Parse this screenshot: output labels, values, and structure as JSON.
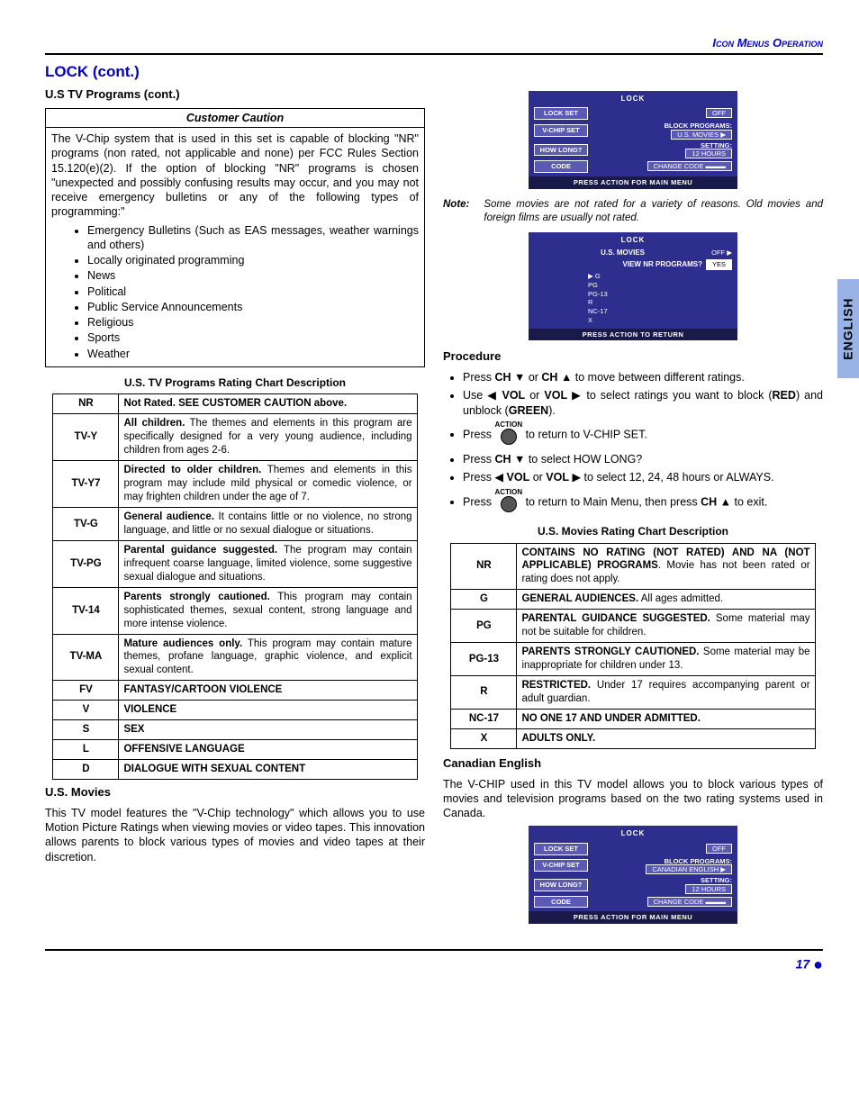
{
  "header": {
    "right": "Icon Menus Operation"
  },
  "title": "LOCK (cont.)",
  "left": {
    "subhead": "U.S TV Programs (cont.)",
    "caution": {
      "title": "Customer Caution",
      "body": "The V-Chip system that is used in this set is capable of blocking \"NR\" programs (non rated, not applicable and none) per FCC Rules Section 15.120(e)(2). If the option of blocking \"NR\" programs is chosen \"unexpected and possibly confusing results may occur, and you may not receive emergency bulletins or any of the following types of programming:\"",
      "items": [
        "Emergency Bulletins (Such as EAS messages, weather warnings and others)",
        "Locally originated programming",
        "News",
        "Political",
        "Public Service Announcements",
        "Religious",
        "Sports",
        "Weather"
      ]
    },
    "tv_table": {
      "caption": "U.S. TV Programs Rating Chart Description",
      "rows": [
        {
          "code": "NR",
          "b": "Not Rated. SEE CUSTOMER CAUTION above.",
          "rest": ""
        },
        {
          "code": "TV-Y",
          "b": "All children.",
          "rest": " The themes and elements in this program are specifically designed for a very young audience, including children from ages 2-6."
        },
        {
          "code": "TV-Y7",
          "b": "Directed to older children.",
          "rest": " Themes and elements in this program may include mild physical or comedic violence, or may frighten children under the age of 7."
        },
        {
          "code": "TV-G",
          "b": "General audience.",
          "rest": " It contains little or no violence, no strong language, and little or no sexual dialogue or situations."
        },
        {
          "code": "TV-PG",
          "b": "Parental guidance suggested.",
          "rest": " The program may contain infrequent coarse language, limited violence, some suggestive sexual dialogue and situations."
        },
        {
          "code": "TV-14",
          "b": "Parents strongly cautioned.",
          "rest": " This program may contain sophisticated themes, sexual content, strong language and more intense violence."
        },
        {
          "code": "TV-MA",
          "b": "Mature audiences only.",
          "rest": " This program may contain mature themes, profane language, graphic violence, and explicit sexual content."
        },
        {
          "code": "FV",
          "b": "FANTASY/CARTOON VIOLENCE",
          "rest": ""
        },
        {
          "code": "V",
          "b": "VIOLENCE",
          "rest": ""
        },
        {
          "code": "S",
          "b": "SEX",
          "rest": ""
        },
        {
          "code": "L",
          "b": "OFFENSIVE LANGUAGE",
          "rest": ""
        },
        {
          "code": "D",
          "b": "DIALOGUE WITH SEXUAL CONTENT",
          "rest": ""
        }
      ]
    },
    "movies_head": "U.S. Movies",
    "movies_para": "This TV model features the \"V-Chip technology\" which allows you to use Motion Picture Ratings when viewing movies or video tapes. This innovation allows parents to block various types of movies and video tapes at their discretion."
  },
  "right": {
    "osd1": {
      "title": "LOCK",
      "rows": [
        {
          "btn": "LOCK SET",
          "val": "OFF"
        },
        {
          "btn": "V-CHIP SET",
          "label": "BLOCK PROGRAMS:",
          "val": "U.S.  MOVIES ▶"
        },
        {
          "btn": "HOW LONG?",
          "label": "SETTING:",
          "val": "12 HOURS"
        },
        {
          "btn": "CODE",
          "val": "CHANGE CODE  ▬▬▬"
        }
      ],
      "footer": "PRESS ACTION FOR MAIN MENU"
    },
    "note_label": "Note:",
    "note": "Some movies are not rated for a variety of reasons. Old movies and foreign films are usually not rated.",
    "osd2": {
      "title": "LOCK",
      "h1": "U.S. MOVIES",
      "h1v": "OFF ▶",
      "h2": "VIEW NR PROGRAMS?",
      "h2v": "YES",
      "ratings": [
        "▶ G",
        "PG",
        "PG-13",
        "R",
        "NC-17",
        "X"
      ],
      "footer": "PRESS ACTION TO RETURN"
    },
    "proc_head": "Procedure",
    "proc": [
      {
        "html": "Press <b>CH</b> ▼ or <b>CH</b> ▲  to move between different ratings."
      },
      {
        "html": "Use ◀ <b>VOL</b> or <b>VOL</b> ▶ to select ratings you want to block (<b>RED</b>) and unblock (<b>GREEN</b>)."
      },
      {
        "html": "Press [ACTION] to return to V-CHIP SET."
      },
      {
        "html": "Press <b>CH</b> ▼ to select HOW LONG?"
      },
      {
        "html": "Press ◀ <b>VOL</b> or <b>VOL</b> ▶ to select 12, 24, 48 hours or ALWAYS."
      },
      {
        "html": "Press [ACTION] to return to Main Menu, then press <b>CH</b> ▲ to exit."
      }
    ],
    "movies_table": {
      "caption": "U.S. Movies Rating Chart Description",
      "rows": [
        {
          "code": "NR",
          "b": "CONTAINS NO RATING (NOT RATED) AND NA (NOT APPLICABLE) PROGRAMS",
          "rest": ". Movie has not been rated or rating does not apply."
        },
        {
          "code": "G",
          "b": "GENERAL AUDIENCES.",
          "rest": " All ages admitted."
        },
        {
          "code": "PG",
          "b": "PARENTAL GUIDANCE SUGGESTED.",
          "rest": " Some material may not be suitable for children."
        },
        {
          "code": "PG-13",
          "b": "PARENTS STRONGLY CAUTIONED.",
          "rest": " Some material may be inappropriate for children under 13."
        },
        {
          "code": "R",
          "b": "RESTRICTED.",
          "rest": " Under 17 requires accompanying parent or adult guardian."
        },
        {
          "code": "NC-17",
          "b": "NO ONE 17 AND UNDER ADMITTED.",
          "rest": ""
        },
        {
          "code": "X",
          "b": "ADULTS ONLY.",
          "rest": ""
        }
      ]
    },
    "can_head": "Canadian English",
    "can_para": "The V-CHIP used in this TV model allows you to block various types of movies and television programs based on the two rating systems used in Canada.",
    "osd3": {
      "title": "LOCK",
      "rows": [
        {
          "btn": "LOCK SET",
          "val": "OFF"
        },
        {
          "btn": "V-CHIP SET",
          "label": "BLOCK PROGRAMS:",
          "val": "CANADIAN ENGLISH ▶"
        },
        {
          "btn": "HOW LONG?",
          "label": "SETTING:",
          "val": "12 HOURS"
        },
        {
          "btn": "CODE",
          "val": "CHANGE CODE  ▬▬▬"
        }
      ],
      "footer": "PRESS ACTION FOR MAIN MENU"
    }
  },
  "sidetab": "ENGLISH",
  "pagenum": "17"
}
